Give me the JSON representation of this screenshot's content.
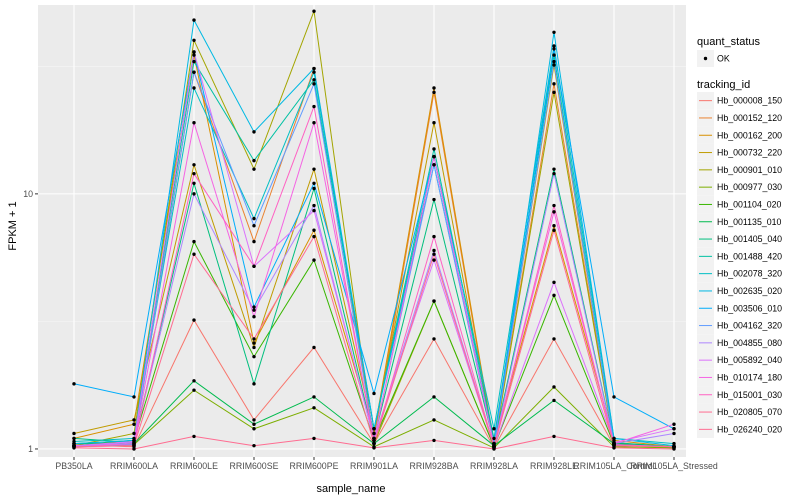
{
  "chart_data": {
    "type": "line",
    "xlabel": "sample_name",
    "ylabel": "FPKM + 1",
    "y_scale": "log",
    "ylim": [
      0.93,
      55
    ],
    "y_ticks": [
      1,
      10
    ],
    "y_tick_labels": [
      "1",
      "10"
    ],
    "grid": true,
    "legend_placement": "right",
    "categories": [
      "PB350LA",
      "RRIM600LA",
      "RRIM600LE",
      "RRIM600SE",
      "RRIM600PE",
      "RRIM901LA",
      "RRIM928BA",
      "RRIM928LA",
      "RRIM928LE",
      "RRIM105LA_Control",
      "RRIM105LA_Stressed"
    ],
    "legend_shape": {
      "title": "quant_status",
      "entries": [
        "OK"
      ]
    },
    "legend_color_title": "tracking_id",
    "series": [
      {
        "name": "Hb_000008_150",
        "color": "#F8766D",
        "values": [
          1.04,
          1.02,
          3.2,
          1.3,
          2.5,
          1.05,
          2.7,
          1.01,
          2.7,
          1.03,
          1.02
        ]
      },
      {
        "name": "Hb_000152_120",
        "color": "#EA8331",
        "values": [
          1.02,
          1.05,
          30,
          6.5,
          31,
          1.1,
          25,
          1.02,
          27,
          1.05,
          1.02
        ]
      },
      {
        "name": "Hb_000162_200",
        "color": "#D89000",
        "values": [
          1.1,
          1.25,
          35,
          2.6,
          7.2,
          1.15,
          26,
          1.05,
          7.5,
          1.08,
          1.02
        ]
      },
      {
        "name": "Hb_000732_220",
        "color": "#C09B00",
        "values": [
          1.15,
          1.3,
          13,
          2.5,
          12.5,
          1.15,
          19,
          1.04,
          32,
          1.05,
          1.02
        ]
      },
      {
        "name": "Hb_000901_010",
        "color": "#A3A500",
        "values": [
          1.03,
          1.15,
          40,
          12.5,
          52,
          1.05,
          3.8,
          1.02,
          25,
          1.04,
          1.01
        ]
      },
      {
        "name": "Hb_000977_030",
        "color": "#7CAE00",
        "values": [
          1.02,
          1.04,
          1.7,
          1.2,
          1.45,
          1.02,
          1.3,
          1.01,
          1.75,
          1.02,
          1.01
        ]
      },
      {
        "name": "Hb_001104_020",
        "color": "#39B600",
        "values": [
          1.03,
          1.08,
          6.5,
          2.3,
          5.5,
          1.08,
          3.8,
          1.02,
          4,
          1.04,
          1.02
        ]
      },
      {
        "name": "Hb_001135_010",
        "color": "#00BB4E",
        "values": [
          1.05,
          1.05,
          1.85,
          1.25,
          1.6,
          1.05,
          1.6,
          1.03,
          1.55,
          1.05,
          1.02
        ]
      },
      {
        "name": "Hb_001405_040",
        "color": "#00BF7D",
        "values": [
          1.1,
          1.06,
          11,
          1.8,
          10.5,
          1.1,
          9.5,
          1.05,
          12.5,
          1.06,
          1.02
        ]
      },
      {
        "name": "Hb_001488_420",
        "color": "#00C1A3",
        "values": [
          1.05,
          1.08,
          33,
          13.5,
          28,
          1.2,
          15,
          1.1,
          35,
          1.04,
          1.02
        ]
      },
      {
        "name": "Hb_002078_320",
        "color": "#00BFC4",
        "values": [
          1.07,
          1.1,
          26,
          8,
          30,
          1.2,
          14,
          1.2,
          38,
          1.1,
          1.05
        ]
      },
      {
        "name": "Hb_002635_020",
        "color": "#00B9E3",
        "values": [
          1.05,
          1.08,
          48,
          17.5,
          31,
          1.2,
          13,
          1.05,
          43,
          1.1,
          1.03
        ]
      },
      {
        "name": "Hb_003506_010",
        "color": "#00ADFA",
        "values": [
          1.8,
          1.6,
          36,
          3.6,
          11,
          1.65,
          14,
          1.05,
          37,
          1.6,
          1.2
        ]
      },
      {
        "name": "Hb_004162_320",
        "color": "#619CFF",
        "values": [
          1.03,
          1.04,
          30,
          7.5,
          27,
          1.1,
          13,
          1.03,
          33,
          1.04,
          1.02
        ]
      },
      {
        "name": "Hb_004855_080",
        "color": "#AE87FF",
        "values": [
          1.03,
          1.06,
          10,
          3.5,
          9,
          1.08,
          6,
          1.02,
          12,
          1.05,
          1.15
        ]
      },
      {
        "name": "Hb_005892_040",
        "color": "#DB72FB",
        "values": [
          1.03,
          1.07,
          36,
          5.2,
          8.6,
          1.1,
          5.5,
          1.02,
          4.5,
          1.06,
          1.2
        ]
      },
      {
        "name": "Hb_010174_180",
        "color": "#F564E3",
        "values": [
          1.02,
          1.05,
          19,
          3.3,
          19,
          1.08,
          14,
          1.03,
          8.5,
          1.05,
          1.25
        ]
      },
      {
        "name": "Hb_015001_030",
        "color": "#FF61C3",
        "values": [
          1.02,
          1.03,
          12,
          5.2,
          22,
          1.05,
          6.8,
          1.02,
          9,
          1.04,
          1.02
        ]
      },
      {
        "name": "Hb_020805_070",
        "color": "#FF6C91",
        "values": [
          1.01,
          1.0,
          1.12,
          1.03,
          1.1,
          1.01,
          1.08,
          1.0,
          1.12,
          1.01,
          1.0
        ]
      },
      {
        "name": "Hb_026240_020",
        "color": "#FF6C91",
        "values": [
          1.02,
          1.03,
          5.8,
          2.7,
          6.8,
          1.05,
          5.8,
          1.02,
          7.2,
          1.03,
          1.02
        ]
      }
    ]
  }
}
